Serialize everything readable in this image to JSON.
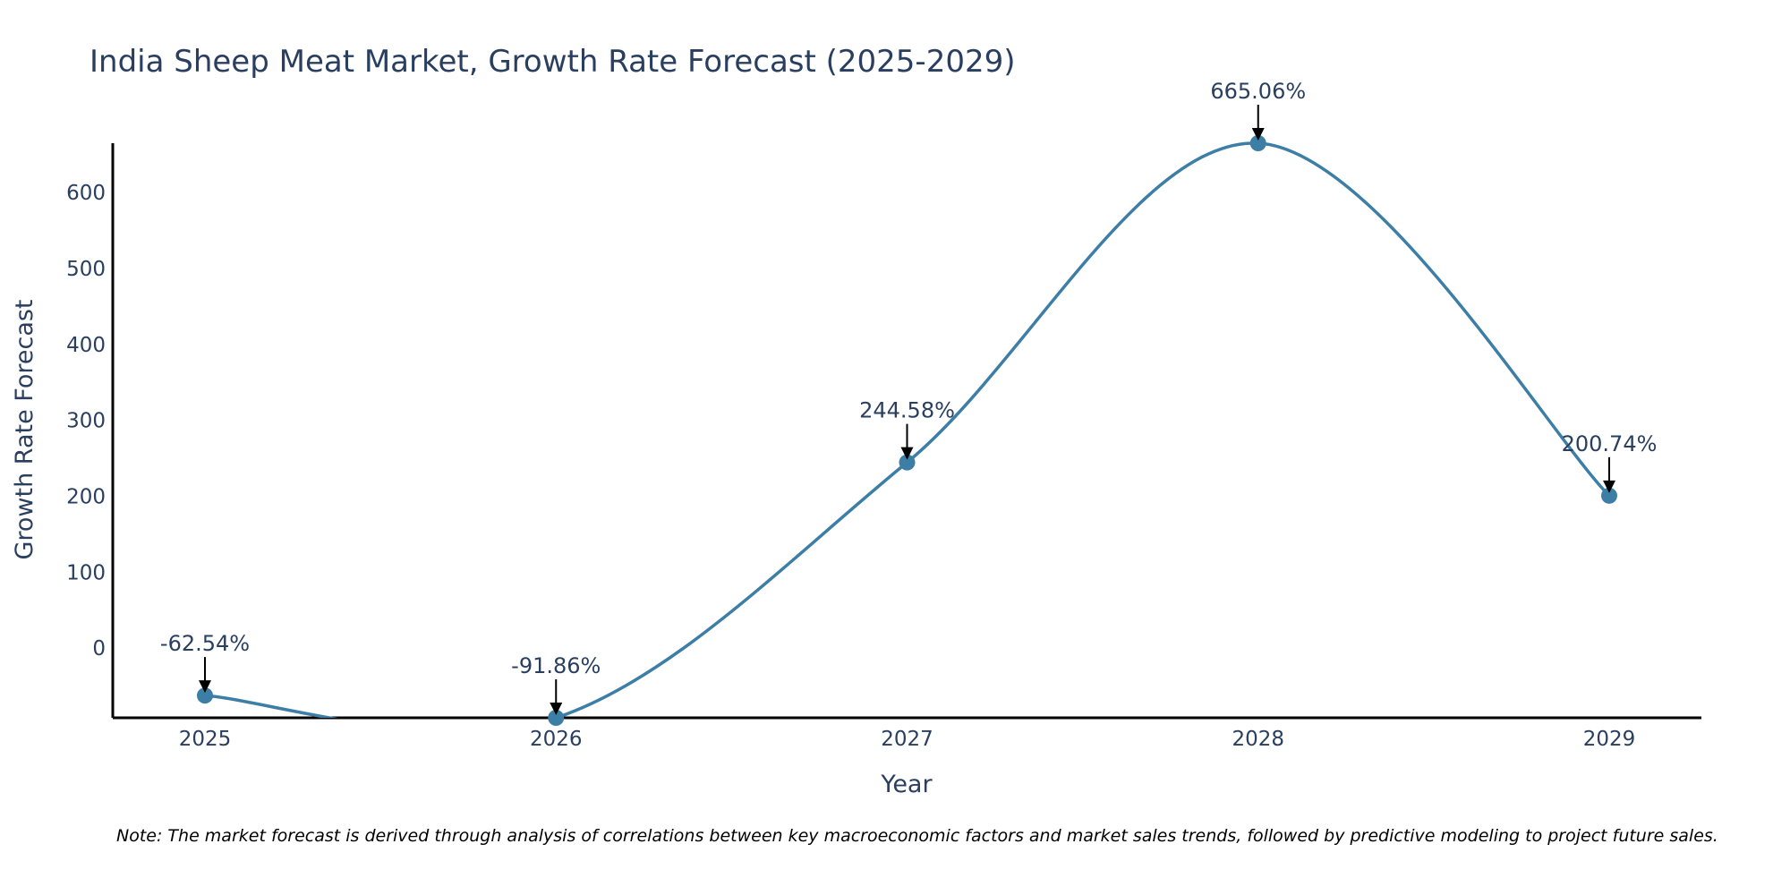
{
  "chart_data": {
    "type": "line",
    "title": "India Sheep Meat Market, Growth Rate Forecast (2025-2029)",
    "xlabel": "Year",
    "ylabel": "Growth Rate Forecast",
    "categories": [
      "2025",
      "2026",
      "2027",
      "2028",
      "2029"
    ],
    "series": [
      {
        "name": "Growth Rate Forecast",
        "values": [
          -62.54,
          -91.86,
          244.58,
          665.06,
          200.74
        ],
        "color": "#3d7ea6"
      }
    ],
    "annotations": [
      "-62.54%",
      "-91.86%",
      "244.58%",
      "665.06%",
      "200.74%"
    ],
    "yticks": [
      0,
      100,
      200,
      300,
      400,
      500,
      600
    ],
    "ytick_labels": [
      "0",
      "100",
      "200",
      "300",
      "400",
      "500",
      "600"
    ],
    "ylim": [
      -91.86,
      665.06
    ],
    "line_shape": "spline",
    "grid": false,
    "note": "Note: The market forecast is derived through analysis of correlations between key macroeconomic factors and market sales trends, followed by predictive modeling to project future sales."
  }
}
